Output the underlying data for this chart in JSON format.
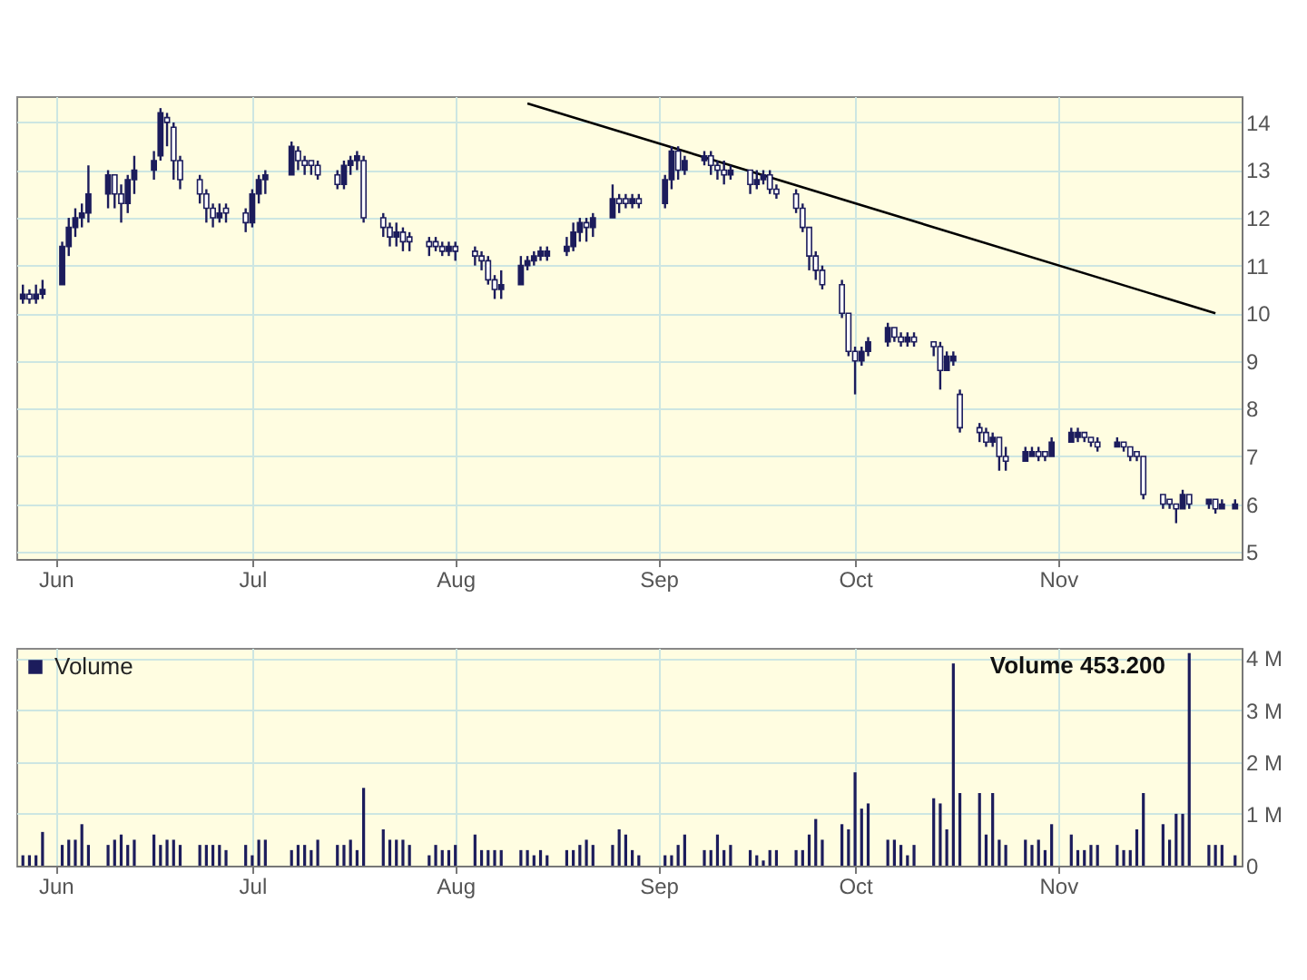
{
  "chart_data": [
    {
      "type": "candlestick",
      "color": "#1c1c5c",
      "x": [
        "--05-27",
        "--05-28",
        "--05-29",
        "--05-30",
        "--06-02",
        "--06-03",
        "--06-04",
        "--06-05",
        "--06-06",
        "--06-09",
        "--06-10",
        "--06-11",
        "--06-12",
        "--06-13",
        "--06-16",
        "--06-17",
        "--06-18",
        "--06-19",
        "--06-20",
        "--06-23",
        "--06-24",
        "--06-25",
        "--06-26",
        "--06-27",
        "--06-30",
        "--07-01",
        "--07-02",
        "--07-03",
        "--07-07",
        "--07-08",
        "--07-09",
        "--07-10",
        "--07-11",
        "--07-14",
        "--07-15",
        "--07-16",
        "--07-17",
        "--07-18",
        "--07-21",
        "--07-22",
        "--07-23",
        "--07-24",
        "--07-25",
        "--07-28",
        "--07-29",
        "--07-30",
        "--07-31",
        "--08-01",
        "--08-04",
        "--08-05",
        "--08-06",
        "--08-07",
        "--08-08",
        "--08-11",
        "--08-12",
        "--08-13",
        "--08-14",
        "--08-15",
        "--08-18",
        "--08-19",
        "--08-20",
        "--08-21",
        "--08-22",
        "--08-25",
        "--08-26",
        "--08-27",
        "--08-28",
        "--08-29",
        "--09-02",
        "--09-03",
        "--09-04",
        "--09-05",
        "--09-08",
        "--09-09",
        "--09-10",
        "--09-11",
        "--09-12",
        "--09-15",
        "--09-16",
        "--09-17",
        "--09-18",
        "--09-19",
        "--09-22",
        "--09-23",
        "--09-24",
        "--09-25",
        "--09-26",
        "--09-29",
        "--09-30",
        "--10-01",
        "--10-02",
        "--10-03",
        "--10-06",
        "--10-07",
        "--10-08",
        "--10-09",
        "--10-10",
        "--10-13",
        "--10-14",
        "--10-15",
        "--10-16",
        "--10-17",
        "--10-20",
        "--10-21",
        "--10-22",
        "--10-23",
        "--10-24",
        "--10-27",
        "--10-28",
        "--10-29",
        "--10-30",
        "--10-31",
        "--11-03",
        "--11-04",
        "--11-05",
        "--11-06",
        "--11-07",
        "--11-10",
        "--11-11",
        "--11-12",
        "--11-13",
        "--11-14",
        "--11-17",
        "--11-18",
        "--11-19",
        "--11-20",
        "--11-21",
        "--11-24",
        "--11-25",
        "--11-26",
        "--11-28"
      ],
      "ohlc": [
        [
          10.3,
          10.6,
          10.2,
          10.4
        ],
        [
          10.4,
          10.5,
          10.2,
          10.3
        ],
        [
          10.3,
          10.6,
          10.2,
          10.4
        ],
        [
          10.4,
          10.7,
          10.3,
          10.5
        ],
        [
          10.6,
          11.5,
          10.6,
          11.4
        ],
        [
          11.4,
          12.0,
          11.2,
          11.8
        ],
        [
          11.8,
          12.2,
          11.6,
          12.0
        ],
        [
          12.0,
          12.3,
          11.8,
          12.1
        ],
        [
          12.1,
          13.1,
          11.9,
          12.5
        ],
        [
          12.5,
          13.0,
          12.2,
          12.9
        ],
        [
          12.9,
          12.9,
          12.2,
          12.5
        ],
        [
          12.5,
          12.7,
          11.9,
          12.3
        ],
        [
          12.3,
          12.9,
          12.1,
          12.8
        ],
        [
          12.8,
          13.3,
          12.5,
          13.0
        ],
        [
          13.0,
          13.4,
          12.8,
          13.2
        ],
        [
          13.3,
          14.3,
          13.2,
          14.2
        ],
        [
          14.1,
          14.2,
          13.5,
          14.0
        ],
        [
          13.9,
          14.0,
          12.8,
          13.2
        ],
        [
          13.2,
          13.3,
          12.6,
          12.8
        ],
        [
          12.8,
          12.9,
          12.3,
          12.5
        ],
        [
          12.5,
          12.6,
          11.9,
          12.2
        ],
        [
          12.2,
          12.3,
          11.8,
          12.0
        ],
        [
          12.0,
          12.3,
          11.9,
          12.1
        ],
        [
          12.2,
          12.3,
          11.9,
          12.1
        ],
        [
          12.1,
          12.2,
          11.7,
          11.9
        ],
        [
          11.9,
          12.6,
          11.8,
          12.5
        ],
        [
          12.5,
          12.9,
          12.3,
          12.8
        ],
        [
          12.8,
          13.0,
          12.5,
          12.9
        ],
        [
          12.9,
          13.6,
          12.9,
          13.5
        ],
        [
          13.4,
          13.5,
          13.0,
          13.2
        ],
        [
          13.2,
          13.3,
          12.9,
          13.1
        ],
        [
          13.2,
          13.2,
          12.9,
          13.1
        ],
        [
          13.1,
          13.2,
          12.8,
          12.9
        ],
        [
          12.9,
          13.0,
          12.6,
          12.7
        ],
        [
          12.7,
          13.2,
          12.6,
          13.1
        ],
        [
          13.1,
          13.3,
          12.9,
          13.2
        ],
        [
          13.2,
          13.4,
          13.0,
          13.3
        ],
        [
          13.2,
          13.3,
          11.9,
          12.0
        ],
        [
          12.0,
          12.1,
          11.6,
          11.8
        ],
        [
          11.8,
          11.9,
          11.4,
          11.6
        ],
        [
          11.6,
          11.9,
          11.4,
          11.7
        ],
        [
          11.7,
          11.8,
          11.3,
          11.5
        ],
        [
          11.6,
          11.7,
          11.3,
          11.5
        ],
        [
          11.5,
          11.6,
          11.2,
          11.4
        ],
        [
          11.5,
          11.6,
          11.3,
          11.4
        ],
        [
          11.4,
          11.5,
          11.2,
          11.3
        ],
        [
          11.3,
          11.5,
          11.2,
          11.4
        ],
        [
          11.4,
          11.5,
          11.1,
          11.3
        ],
        [
          11.3,
          11.4,
          11.0,
          11.2
        ],
        [
          11.2,
          11.3,
          10.9,
          11.1
        ],
        [
          11.1,
          11.2,
          10.6,
          10.7
        ],
        [
          10.7,
          10.8,
          10.3,
          10.5
        ],
        [
          10.5,
          10.9,
          10.3,
          10.6
        ],
        [
          10.6,
          11.2,
          10.6,
          11.0
        ],
        [
          11.0,
          11.2,
          10.9,
          11.1
        ],
        [
          11.1,
          11.3,
          11.0,
          11.2
        ],
        [
          11.2,
          11.4,
          11.1,
          11.3
        ],
        [
          11.2,
          11.4,
          11.1,
          11.3
        ],
        [
          11.3,
          11.6,
          11.2,
          11.4
        ],
        [
          11.4,
          11.9,
          11.3,
          11.7
        ],
        [
          11.7,
          12.0,
          11.5,
          11.9
        ],
        [
          11.9,
          12.0,
          11.5,
          11.8
        ],
        [
          11.8,
          12.1,
          11.6,
          12.0
        ],
        [
          12.0,
          12.7,
          12.0,
          12.4
        ],
        [
          12.4,
          12.5,
          12.1,
          12.3
        ],
        [
          12.4,
          12.5,
          12.2,
          12.3
        ],
        [
          12.3,
          12.5,
          12.2,
          12.4
        ],
        [
          12.4,
          12.5,
          12.2,
          12.3
        ],
        [
          12.3,
          12.9,
          12.2,
          12.8
        ],
        [
          12.8,
          13.5,
          12.6,
          13.4
        ],
        [
          13.4,
          13.5,
          12.8,
          13.0
        ],
        [
          13.0,
          13.3,
          12.9,
          13.2
        ],
        [
          13.2,
          13.4,
          13.1,
          13.3
        ],
        [
          13.3,
          13.4,
          12.9,
          13.1
        ],
        [
          13.1,
          13.2,
          12.8,
          13.0
        ],
        [
          13.0,
          13.2,
          12.7,
          12.9
        ],
        [
          12.9,
          13.1,
          12.8,
          13.0
        ],
        [
          13.0,
          13.0,
          12.5,
          12.7
        ],
        [
          12.7,
          13.0,
          12.6,
          12.8
        ],
        [
          12.8,
          13.0,
          12.7,
          12.9
        ],
        [
          12.9,
          13.0,
          12.5,
          12.6
        ],
        [
          12.6,
          12.7,
          12.4,
          12.5
        ],
        [
          12.5,
          12.6,
          12.1,
          12.2
        ],
        [
          12.2,
          12.3,
          11.7,
          11.8
        ],
        [
          11.8,
          11.8,
          10.9,
          11.2
        ],
        [
          11.2,
          11.3,
          10.7,
          10.9
        ],
        [
          10.9,
          11.0,
          10.5,
          10.6
        ],
        [
          10.6,
          10.7,
          9.9,
          10.0
        ],
        [
          10.0,
          10.0,
          9.1,
          9.2
        ],
        [
          9.2,
          9.3,
          8.3,
          9.0
        ],
        [
          9.0,
          9.3,
          8.9,
          9.2
        ],
        [
          9.2,
          9.5,
          9.1,
          9.4
        ],
        [
          9.4,
          9.8,
          9.3,
          9.7
        ],
        [
          9.7,
          9.7,
          9.4,
          9.5
        ],
        [
          9.5,
          9.6,
          9.3,
          9.4
        ],
        [
          9.4,
          9.6,
          9.3,
          9.5
        ],
        [
          9.5,
          9.6,
          9.3,
          9.4
        ],
        [
          9.4,
          9.4,
          9.1,
          9.3
        ],
        [
          9.3,
          9.4,
          8.4,
          8.8
        ],
        [
          8.8,
          9.2,
          8.8,
          9.1
        ],
        [
          9.0,
          9.2,
          8.9,
          9.1
        ],
        [
          8.3,
          8.4,
          7.5,
          7.6
        ],
        [
          7.6,
          7.7,
          7.3,
          7.5
        ],
        [
          7.5,
          7.6,
          7.2,
          7.3
        ],
        [
          7.3,
          7.5,
          7.2,
          7.4
        ],
        [
          7.4,
          7.4,
          6.7,
          7.0
        ],
        [
          7.0,
          7.2,
          6.7,
          6.9
        ],
        [
          6.9,
          7.2,
          6.9,
          7.1
        ],
        [
          7.0,
          7.2,
          7.0,
          7.1
        ],
        [
          7.1,
          7.2,
          6.9,
          7.0
        ],
        [
          7.1,
          7.1,
          6.9,
          7.0
        ],
        [
          7.0,
          7.4,
          7.0,
          7.3
        ],
        [
          7.3,
          7.6,
          7.3,
          7.5
        ],
        [
          7.4,
          7.6,
          7.3,
          7.5
        ],
        [
          7.5,
          7.5,
          7.3,
          7.4
        ],
        [
          7.4,
          7.4,
          7.2,
          7.3
        ],
        [
          7.3,
          7.4,
          7.1,
          7.2
        ],
        [
          7.2,
          7.4,
          7.2,
          7.3
        ],
        [
          7.3,
          7.3,
          7.1,
          7.2
        ],
        [
          7.2,
          7.2,
          6.9,
          7.0
        ],
        [
          7.1,
          7.1,
          6.9,
          7.0
        ],
        [
          7.0,
          7.0,
          6.1,
          6.2
        ],
        [
          6.2,
          6.2,
          5.9,
          6.0
        ],
        [
          6.1,
          6.1,
          5.9,
          6.0
        ],
        [
          6.0,
          6.0,
          5.6,
          5.9
        ],
        [
          5.9,
          6.3,
          5.9,
          6.2
        ],
        [
          6.2,
          6.2,
          5.9,
          6.0
        ],
        [
          6.0,
          6.1,
          5.9,
          6.1
        ],
        [
          6.1,
          6.1,
          5.8,
          5.9
        ],
        [
          5.9,
          6.1,
          5.9,
          6.0
        ],
        [
          5.9,
          6.1,
          5.9,
          6.0
        ]
      ],
      "series": [
        {
          "type": "line",
          "color": "#000000",
          "x": [
            "--08-12",
            "--11-25"
          ],
          "values": [
            14.4,
            10.0
          ]
        }
      ],
      "xlim": [
        "--05-26",
        "--11-29"
      ],
      "xticks": [
        {
          "value": "--06-01",
          "label": "Jun"
        },
        {
          "value": "--07-01",
          "label": "Jul"
        },
        {
          "value": "--08-01",
          "label": "Aug"
        },
        {
          "value": "--09-01",
          "label": "Sep"
        },
        {
          "value": "--10-01",
          "label": "Oct"
        },
        {
          "value": "--11-01",
          "label": "Nov"
        }
      ],
      "ylim": [
        4.85,
        14.55
      ],
      "yticks": [
        5,
        6,
        7,
        8,
        9,
        10,
        11,
        12,
        13,
        14
      ],
      "grid": true
    },
    {
      "type": "bar",
      "legend": "top left",
      "annotations": [
        "Volume 453.200"
      ],
      "x": [
        "--05-27",
        "--05-28",
        "--05-29",
        "--05-30",
        "--06-02",
        "--06-03",
        "--06-04",
        "--06-05",
        "--06-06",
        "--06-09",
        "--06-10",
        "--06-11",
        "--06-12",
        "--06-13",
        "--06-16",
        "--06-17",
        "--06-18",
        "--06-19",
        "--06-20",
        "--06-23",
        "--06-24",
        "--06-25",
        "--06-26",
        "--06-27",
        "--06-30",
        "--07-01",
        "--07-02",
        "--07-03",
        "--07-07",
        "--07-08",
        "--07-09",
        "--07-10",
        "--07-11",
        "--07-14",
        "--07-15",
        "--07-16",
        "--07-17",
        "--07-18",
        "--07-21",
        "--07-22",
        "--07-23",
        "--07-24",
        "--07-25",
        "--07-28",
        "--07-29",
        "--07-30",
        "--07-31",
        "--08-01",
        "--08-04",
        "--08-05",
        "--08-06",
        "--08-07",
        "--08-08",
        "--08-11",
        "--08-12",
        "--08-13",
        "--08-14",
        "--08-15",
        "--08-18",
        "--08-19",
        "--08-20",
        "--08-21",
        "--08-22",
        "--08-25",
        "--08-26",
        "--08-27",
        "--08-28",
        "--08-29",
        "--09-02",
        "--09-03",
        "--09-04",
        "--09-05",
        "--09-08",
        "--09-09",
        "--09-10",
        "--09-11",
        "--09-12",
        "--09-15",
        "--09-16",
        "--09-17",
        "--09-18",
        "--09-19",
        "--09-22",
        "--09-23",
        "--09-24",
        "--09-25",
        "--09-26",
        "--09-29",
        "--09-30",
        "--10-01",
        "--10-02",
        "--10-03",
        "--10-06",
        "--10-07",
        "--10-08",
        "--10-09",
        "--10-10",
        "--10-13",
        "--10-14",
        "--10-15",
        "--10-16",
        "--10-17",
        "--10-20",
        "--10-21",
        "--10-22",
        "--10-23",
        "--10-24",
        "--10-27",
        "--10-28",
        "--10-29",
        "--10-30",
        "--10-31",
        "--11-03",
        "--11-04",
        "--11-05",
        "--11-06",
        "--11-07",
        "--11-10",
        "--11-11",
        "--11-12",
        "--11-13",
        "--11-14",
        "--11-17",
        "--11-18",
        "--11-19",
        "--11-20",
        "--11-21",
        "--11-24",
        "--11-25",
        "--11-26",
        "--11-28"
      ],
      "series": [
        {
          "name": "Volume",
          "color": "#1c1c5c",
          "values": [
            0.2,
            0.2,
            0.2,
            0.65,
            0.4,
            0.5,
            0.5,
            0.8,
            0.4,
            0.4,
            0.5,
            0.6,
            0.4,
            0.5,
            0.6,
            0.4,
            0.5,
            0.5,
            0.4,
            0.4,
            0.4,
            0.4,
            0.4,
            0.3,
            0.4,
            0.2,
            0.5,
            0.5,
            0.3,
            0.4,
            0.4,
            0.3,
            0.5,
            0.4,
            0.4,
            0.5,
            0.3,
            1.5,
            0.7,
            0.5,
            0.5,
            0.5,
            0.4,
            0.2,
            0.4,
            0.3,
            0.3,
            0.4,
            0.6,
            0.3,
            0.3,
            0.3,
            0.3,
            0.3,
            0.3,
            0.2,
            0.3,
            0.2,
            0.3,
            0.3,
            0.4,
            0.5,
            0.4,
            0.4,
            0.7,
            0.6,
            0.3,
            0.2,
            0.2,
            0.2,
            0.4,
            0.6,
            0.3,
            0.3,
            0.6,
            0.3,
            0.4,
            0.3,
            0.2,
            0.1,
            0.3,
            0.3,
            0.3,
            0.3,
            0.6,
            0.9,
            0.5,
            0.8,
            0.7,
            1.8,
            1.1,
            1.2,
            0.5,
            0.5,
            0.4,
            0.2,
            0.4,
            1.3,
            1.2,
            0.7,
            3.9,
            1.4,
            1.4,
            0.6,
            1.4,
            0.5,
            0.4,
            0.5,
            0.4,
            0.5,
            0.3,
            0.8,
            0.6,
            0.3,
            0.3,
            0.4,
            0.4,
            0.4,
            0.3,
            0.3,
            0.7,
            1.4,
            0.8,
            0.5,
            1.0,
            1.0,
            4.1,
            0.4,
            0.4,
            0.4,
            0.2
          ]
        }
      ],
      "xlim": [
        "--05-26",
        "--11-29"
      ],
      "xticks": [
        {
          "value": "--06-01",
          "label": "Jun"
        },
        {
          "value": "--07-01",
          "label": "Jul"
        },
        {
          "value": "--08-01",
          "label": "Aug"
        },
        {
          "value": "--09-01",
          "label": "Sep"
        },
        {
          "value": "--10-01",
          "label": "Oct"
        },
        {
          "value": "--11-01",
          "label": "Nov"
        }
      ],
      "ylim": [
        0,
        4.2
      ],
      "yticks": [
        0,
        {
          "value": 1,
          "label": "1 M"
        },
        {
          "value": 2,
          "label": "2 M"
        },
        {
          "value": 3,
          "label": "3 M"
        },
        {
          "value": 4,
          "label": "4 M"
        }
      ],
      "grid": true
    }
  ]
}
